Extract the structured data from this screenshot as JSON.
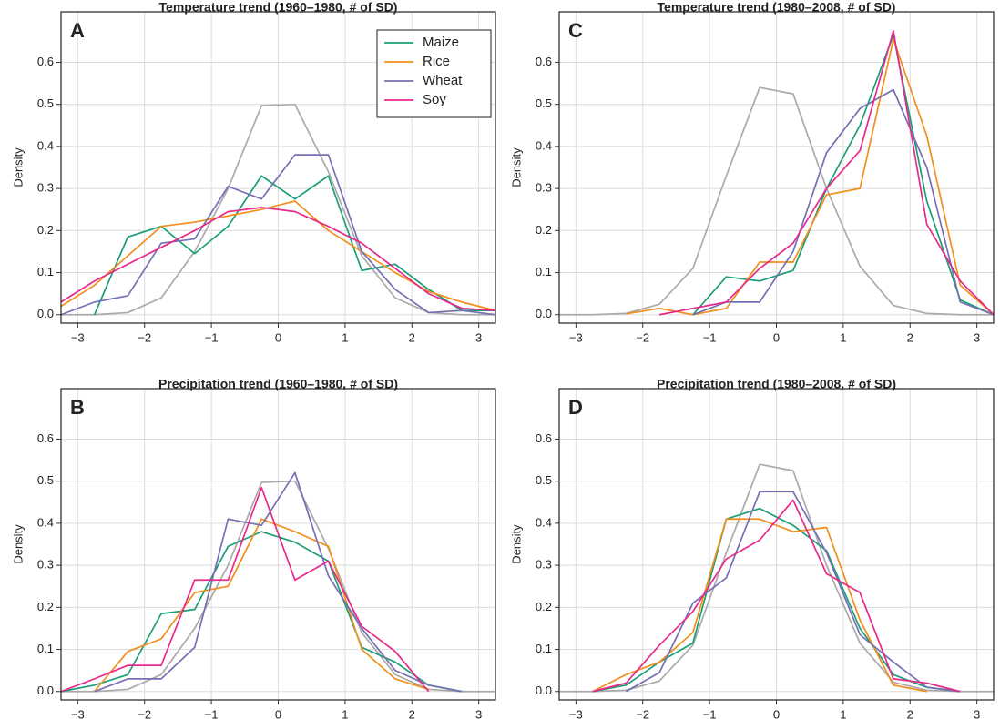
{
  "chart_data": [
    {
      "type": "line",
      "panel": "A",
      "title": "Temperature trend (1960–1980, # of SD)",
      "y_label": "Density",
      "x": [
        -3.25,
        -2.75,
        -2.25,
        -1.75,
        -1.25,
        -0.75,
        -0.25,
        0.25,
        0.75,
        1.25,
        1.75,
        2.25,
        2.75,
        3.25
      ],
      "series": [
        {
          "color": "#aaaaaa",
          "values": [
            0,
            0,
            0.005,
            0.04,
            0.15,
            0.3,
            0.497,
            0.5,
            0.34,
            0.14,
            0.04,
            0.005,
            0,
            0
          ]
        },
        {
          "name": "Maize",
          "color": "#1b9e77",
          "values": [
            null,
            0,
            0.185,
            0.21,
            0.145,
            0.21,
            0.33,
            0.275,
            0.33,
            0.105,
            0.12,
            0.06,
            0.01,
            0.01
          ]
        },
        {
          "name": "Rice",
          "color": "#f28e1c",
          "values": [
            0.02,
            0.07,
            0.14,
            0.21,
            0.22,
            0.235,
            0.25,
            0.27,
            0.2,
            0.15,
            0.1,
            0.055,
            0.03,
            0.01
          ]
        },
        {
          "name": "Wheat",
          "color": "#7570b3",
          "values": [
            0,
            0.03,
            0.045,
            0.17,
            0.18,
            0.305,
            0.275,
            0.38,
            0.38,
            0.15,
            0.06,
            0.005,
            0.01,
            0
          ]
        },
        {
          "name": "Soy",
          "color": "#e7298a",
          "values": [
            0.03,
            0.08,
            0.12,
            0.16,
            0.2,
            0.245,
            0.255,
            0.245,
            0.21,
            0.17,
            0.11,
            0.05,
            0.015,
            0.01
          ]
        }
      ],
      "legend": "top-right",
      "xlim": [
        -3.25,
        3.25
      ],
      "ylim": [
        -0.02,
        0.72
      ],
      "xticks": [
        {
          "value": -3,
          "label": "−3"
        },
        {
          "value": -2,
          "label": "−2"
        },
        {
          "value": -1,
          "label": "−1"
        },
        0,
        1,
        2,
        3
      ],
      "yticks": [
        {
          "value": 0,
          "label": "0.0"
        },
        0.1,
        0.2,
        0.3,
        0.4,
        0.5,
        0.6
      ],
      "grid": true
    },
    {
      "type": "line",
      "panel": "C",
      "title": "Temperature trend (1980–2008, # of SD)",
      "y_label": "Density",
      "x": [
        -3.25,
        -2.75,
        -2.25,
        -1.75,
        -1.25,
        -0.75,
        -0.25,
        0.25,
        0.75,
        1.25,
        1.75,
        2.25,
        2.75,
        3.25
      ],
      "series": [
        {
          "color": "#aaaaaa",
          "values": [
            0,
            0,
            0.003,
            0.025,
            0.11,
            0.33,
            0.54,
            0.525,
            0.3,
            0.115,
            0.022,
            0.003,
            0,
            0
          ]
        },
        {
          "color": "#1b9e77",
          "values": [
            null,
            null,
            null,
            null,
            0,
            0.09,
            0.08,
            0.105,
            0.3,
            0.45,
            0.665,
            0.27,
            0.035,
            0
          ]
        },
        {
          "color": "#f28e1c",
          "values": [
            null,
            null,
            0.002,
            0.015,
            0,
            0.015,
            0.125,
            0.125,
            0.285,
            0.3,
            0.655,
            0.425,
            0.07,
            0
          ]
        },
        {
          "color": "#7570b3",
          "values": [
            null,
            null,
            null,
            null,
            0,
            0.03,
            0.03,
            0.15,
            0.385,
            0.49,
            0.535,
            0.35,
            0.03,
            0
          ]
        },
        {
          "color": "#e7298a",
          "values": [
            null,
            null,
            null,
            0,
            0.015,
            0.03,
            0.11,
            0.17,
            0.3,
            0.39,
            0.675,
            0.215,
            0.08,
            0
          ]
        }
      ],
      "xlim": [
        -3.25,
        3.25
      ],
      "ylim": [
        -0.02,
        0.72
      ],
      "xticks": [
        {
          "value": -3,
          "label": "−3"
        },
        {
          "value": -2,
          "label": "−2"
        },
        {
          "value": -1,
          "label": "−1"
        },
        0,
        1,
        2,
        3
      ],
      "yticks": [
        {
          "value": 0,
          "label": "0.0"
        },
        0.1,
        0.2,
        0.3,
        0.4,
        0.5,
        0.6
      ],
      "grid": true
    },
    {
      "type": "line",
      "panel": "B",
      "title": "Precipitation trend (1960–1980, # of SD)",
      "y_label": "Density",
      "x": [
        -3.25,
        -2.75,
        -2.25,
        -1.75,
        -1.25,
        -0.75,
        -0.25,
        0.25,
        0.75,
        1.25,
        1.75,
        2.25,
        2.75,
        3.25
      ],
      "series": [
        {
          "color": "#aaaaaa",
          "values": [
            0,
            0,
            0.005,
            0.04,
            0.15,
            0.3,
            0.497,
            0.5,
            0.34,
            0.14,
            0.04,
            0.005,
            0,
            0
          ]
        },
        {
          "color": "#1b9e77",
          "values": [
            0,
            0.015,
            0.04,
            0.185,
            0.195,
            0.345,
            0.38,
            0.355,
            0.31,
            0.105,
            0.07,
            0.015,
            0,
            null
          ]
        },
        {
          "color": "#f28e1c",
          "values": [
            null,
            0,
            0.095,
            0.125,
            0.235,
            0.25,
            0.41,
            0.38,
            0.345,
            0.1,
            0.03,
            0.005,
            null,
            null
          ]
        },
        {
          "color": "#7570b3",
          "values": [
            null,
            0,
            0.03,
            0.03,
            0.105,
            0.41,
            0.395,
            0.52,
            0.275,
            0.15,
            0.05,
            0.015,
            0,
            null
          ]
        },
        {
          "color": "#e7298a",
          "values": [
            0,
            0.03,
            0.062,
            0.062,
            0.265,
            0.265,
            0.485,
            0.265,
            0.31,
            0.155,
            0.095,
            0,
            null,
            null
          ]
        }
      ],
      "xlim": [
        -3.25,
        3.25
      ],
      "ylim": [
        -0.02,
        0.72
      ],
      "xticks": [
        {
          "value": -3,
          "label": "−3"
        },
        {
          "value": -2,
          "label": "−2"
        },
        {
          "value": -1,
          "label": "−1"
        },
        0,
        1,
        2,
        3
      ],
      "yticks": [
        {
          "value": 0,
          "label": "0.0"
        },
        0.1,
        0.2,
        0.3,
        0.4,
        0.5,
        0.6
      ],
      "grid": true
    },
    {
      "type": "line",
      "panel": "D",
      "title": "Precipitation trend (1980–2008, # of SD)",
      "y_label": "Density",
      "x": [
        -3.25,
        -2.75,
        -2.25,
        -1.75,
        -1.25,
        -0.75,
        -0.25,
        0.25,
        0.75,
        1.25,
        1.75,
        2.25,
        2.75,
        3.25
      ],
      "series": [
        {
          "color": "#aaaaaa",
          "values": [
            0,
            0,
            0.003,
            0.025,
            0.11,
            0.33,
            0.54,
            0.525,
            0.3,
            0.115,
            0.022,
            0.003,
            0,
            0
          ]
        },
        {
          "color": "#1b9e77",
          "values": [
            null,
            0,
            0.015,
            0.07,
            0.115,
            0.41,
            0.435,
            0.395,
            0.335,
            0.15,
            0.04,
            0.01,
            0,
            null
          ]
        },
        {
          "color": "#f28e1c",
          "values": [
            null,
            0,
            0.04,
            0.07,
            0.14,
            0.41,
            0.41,
            0.38,
            0.39,
            0.17,
            0.015,
            0,
            null,
            null
          ]
        },
        {
          "color": "#7570b3",
          "values": [
            null,
            null,
            0,
            0.045,
            0.21,
            0.27,
            0.475,
            0.475,
            0.33,
            0.135,
            0.07,
            0.01,
            0,
            null
          ]
        },
        {
          "color": "#e7298a",
          "values": [
            null,
            0,
            0.02,
            0.11,
            0.19,
            0.315,
            0.36,
            0.455,
            0.28,
            0.235,
            0.03,
            0.02,
            0,
            null
          ]
        }
      ],
      "xlim": [
        -3.25,
        3.25
      ],
      "ylim": [
        -0.02,
        0.72
      ],
      "xticks": [
        {
          "value": -3,
          "label": "−3"
        },
        {
          "value": -2,
          "label": "−2"
        },
        {
          "value": -1,
          "label": "−1"
        },
        0,
        1,
        2,
        3
      ],
      "yticks": [
        {
          "value": 0,
          "label": "0.0"
        },
        0.1,
        0.2,
        0.3,
        0.4,
        0.5,
        0.6
      ],
      "grid": true
    }
  ]
}
